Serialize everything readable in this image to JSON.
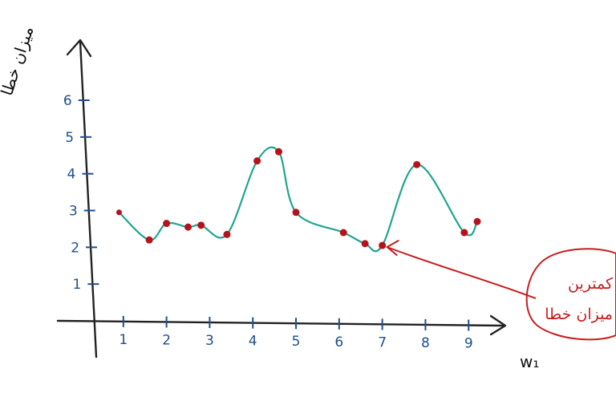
{
  "chart_data": {
    "type": "line",
    "ylabel": "میزان خطا",
    "xlabel": "w₁",
    "x_ticks": [
      "1",
      "2",
      "3",
      "4",
      "5",
      "6",
      "7",
      "8",
      "9"
    ],
    "y_ticks": [
      "1",
      "2",
      "3",
      "4",
      "5",
      "6"
    ],
    "xlim": [
      0,
      9.7
    ],
    "ylim": [
      0,
      6.5
    ],
    "grid": false,
    "series": [
      {
        "color": "#1fa58f",
        "marker_color": "#b5121b",
        "x": [
          0.9,
          1.6,
          2.0,
          2.5,
          2.8,
          3.4,
          4.1,
          4.6,
          5.0,
          6.1,
          6.6,
          7.0,
          7.8,
          8.9,
          9.2
        ],
        "y": [
          2.95,
          2.2,
          2.65,
          2.55,
          2.6,
          2.35,
          4.35,
          4.6,
          2.95,
          2.4,
          2.1,
          2.05,
          4.25,
          2.4,
          2.7
        ]
      }
    ],
    "annotation": {
      "text_line1": "کمترین",
      "text_line2": "میزان خطا",
      "x": 7.0,
      "y": 2.05,
      "color": "#c81d1d"
    }
  }
}
